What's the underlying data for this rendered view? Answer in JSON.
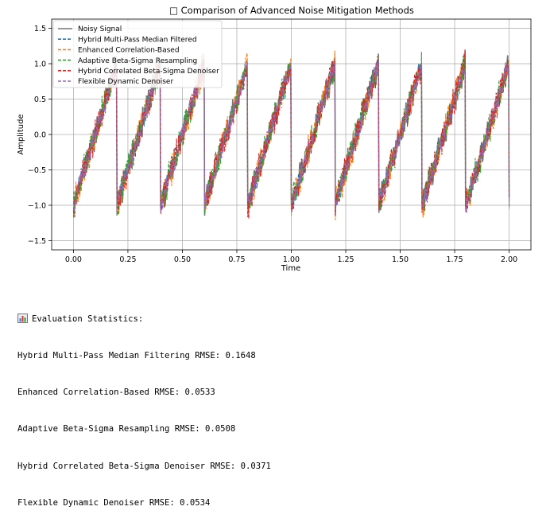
{
  "chart_data": {
    "type": "line",
    "title": "□ Comparison of Advanced Noise Mitigation Methods",
    "xlabel": "Time",
    "ylabel": "Amplitude",
    "xlim": [
      -0.1,
      2.1
    ],
    "ylim": [
      -1.63,
      1.63
    ],
    "xticks": [
      "0.00",
      "0.25",
      "0.50",
      "0.75",
      "1.00",
      "1.25",
      "1.50",
      "1.75",
      "2.00"
    ],
    "yticks": [
      "−1.5",
      "−1.0",
      "−0.5",
      "0.0",
      "0.5",
      "1.0",
      "1.5"
    ],
    "grid": true,
    "legend_position": "top-left",
    "signal": {
      "kind": "sawtooth",
      "period": 0.2,
      "min": -1.0,
      "max": 1.0,
      "x_range": [
        0,
        2
      ]
    },
    "series": [
      {
        "name": "Noisy Signal",
        "color": "#777777",
        "style": "solid",
        "noise": 0.14
      },
      {
        "name": "Hybrid Multi-Pass Median Filtered",
        "color": "#1f77b4",
        "style": "dashed",
        "noise": 0.12
      },
      {
        "name": "Enhanced Correlation-Based",
        "color": "#ff7f0e",
        "style": "dashed",
        "noise": 0.16
      },
      {
        "name": "Adaptive Beta-Sigma Resampling",
        "color": "#2ca02c",
        "style": "dashed",
        "noise": 0.16
      },
      {
        "name": "Hybrid Correlated Beta-Sigma Denoiser",
        "color": "#d62728",
        "style": "dashed",
        "noise": 0.15
      },
      {
        "name": "Flexible Dynamic Denoiser",
        "color": "#9467bd",
        "style": "dashed",
        "noise": 0.1
      }
    ]
  },
  "stats": {
    "heading": "Evaluation Statistics:",
    "lines": [
      "Hybrid Multi-Pass Median Filtering RMSE: 0.1648",
      "Enhanced Correlation-Based RMSE: 0.0533",
      "Adaptive Beta-Sigma Resampling RMSE: 0.0508",
      "Hybrid Correlated Beta-Sigma Denoiser RMSE: 0.0371",
      "Flexible Dynamic Denoiser RMSE: 0.0534"
    ]
  }
}
